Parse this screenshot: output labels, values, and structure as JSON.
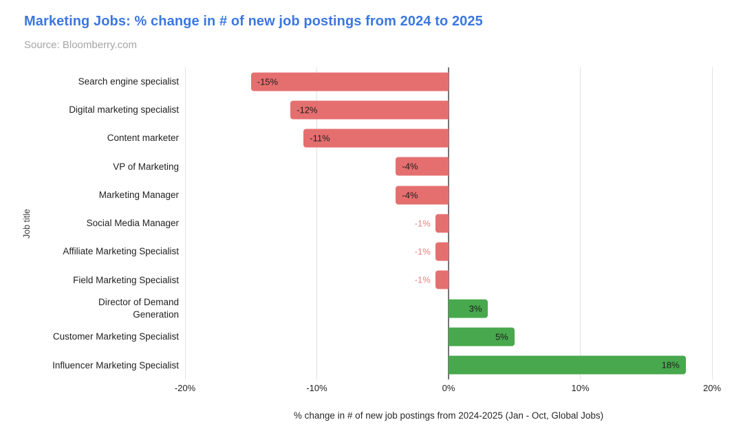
{
  "title": "Marketing Jobs: % change in # of new job postings from 2024 to 2025",
  "source": "Source: Bloomberry.com",
  "chart_data": {
    "type": "bar",
    "orientation": "horizontal",
    "title": "Marketing Jobs: % change in # of new job postings from 2024 to 2025",
    "subtitle": "Source: Bloomberry.com",
    "xlabel": "% change in # of new job postings from 2024-2025 (Jan - Oct, Global Jobs)",
    "ylabel": "Job title",
    "xlim": [
      -20,
      20
    ],
    "grid": true,
    "legend": "none",
    "xticks": [
      {
        "value": -20,
        "label": "-20%"
      },
      {
        "value": -10,
        "label": "-10%"
      },
      {
        "value": 0,
        "label": "0%"
      },
      {
        "value": 10,
        "label": "10%"
      },
      {
        "value": 20,
        "label": "20%"
      }
    ],
    "categories": [
      "Search engine specialist",
      "Digital marketing specialist",
      "Content marketer",
      "VP of Marketing",
      "Marketing Manager",
      "Social Media Manager",
      "Affiliate Marketing Specialist",
      "Field Marketing Specialist",
      "Director of Demand\nGeneration",
      "Customer Marketing Specialist",
      "Influencer Marketing Specialist"
    ],
    "values": [
      -15,
      -12,
      -11,
      -4,
      -4,
      -1,
      -1,
      -1,
      3,
      5,
      18
    ],
    "value_labels": [
      "-15%",
      "-12%",
      "-11%",
      "-4%",
      "-4%",
      "-1%",
      "-1%",
      "-1%",
      "3%",
      "5%",
      "18%"
    ],
    "colors": {
      "negative_bar": "#e56f6f",
      "positive_bar": "#47a84d",
      "inside_label": "#1d1d1d",
      "outside_label": "#e8807f",
      "title": "#3b77e0"
    }
  }
}
